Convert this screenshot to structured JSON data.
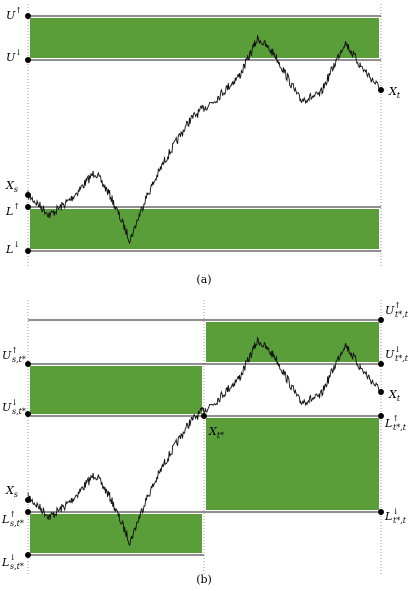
{
  "panel_a": {
    "caption": "(a)",
    "labels": [
      {
        "base": "U",
        "sup": "↑"
      },
      {
        "base": "U",
        "sup": "↓"
      },
      {
        "base": "X",
        "sub": "s"
      },
      {
        "base": "L",
        "sup": "↑"
      },
      {
        "base": "L",
        "sup": "↓"
      },
      {
        "base": "X",
        "sub": "t"
      }
    ]
  },
  "panel_b": {
    "caption": "(b)",
    "labels": [
      {
        "base": "U",
        "sup": "↑",
        "sub": "s,t*"
      },
      {
        "base": "U",
        "sup": "↓",
        "sub": "s,t*"
      },
      {
        "base": "X",
        "sub": "s"
      },
      {
        "base": "L",
        "sup": "↑",
        "sub": "s,t*"
      },
      {
        "base": "L",
        "sup": "↓",
        "sub": "s,t*"
      },
      {
        "base": "U",
        "sup": "↑",
        "sub": "t*,t"
      },
      {
        "base": "U",
        "sup": "↓",
        "sub": "t*,t"
      },
      {
        "base": "X",
        "sub": "t"
      },
      {
        "base": "L",
        "sup": "↑",
        "sub": "t*,t"
      },
      {
        "base": "L",
        "sup": "↓",
        "sub": "t*,t"
      },
      {
        "base": "X",
        "sub": "t*"
      }
    ]
  }
}
